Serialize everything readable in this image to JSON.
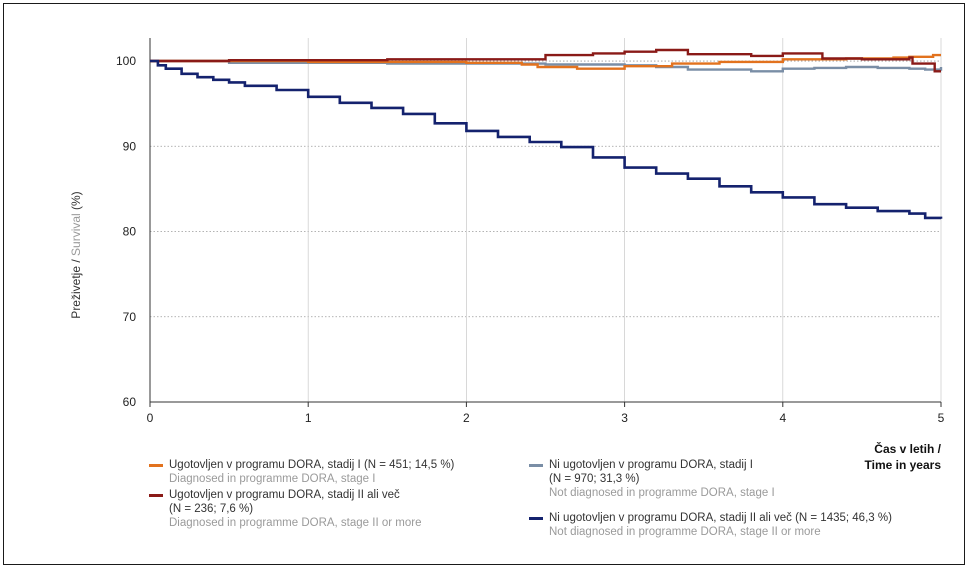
{
  "chart_data": {
    "type": "line",
    "ylabel_sl": "Preživetje",
    "ylabel_sep": " / ",
    "ylabel_en": "Survival",
    "ylabel_unit": " (%)",
    "xlabel_line1": "Čas v letih /",
    "xlabel_line2": "Time in years",
    "xlim": [
      0,
      5
    ],
    "ylim": [
      60,
      102
    ],
    "xticks": [
      "0",
      "1",
      "2",
      "3",
      "4",
      "5"
    ],
    "yticks": [
      "60",
      "70",
      "80",
      "90",
      "100"
    ],
    "grid": true,
    "legend_position": "bottom",
    "series": [
      {
        "name": "Ugotovljen v programu DORA, stadij I (N = 451; 14,5 %)",
        "subtitle": "Diagnosed in programme DORA, stage I",
        "color": "#e2721e",
        "points": [
          [
            0,
            100
          ],
          [
            1.0,
            99.9
          ],
          [
            2.0,
            99.8
          ],
          [
            2.35,
            99.6
          ],
          [
            2.45,
            99.3
          ],
          [
            2.6,
            99.3
          ],
          [
            2.7,
            99.1
          ],
          [
            3.0,
            99.4
          ],
          [
            3.3,
            99.7
          ],
          [
            3.6,
            99.9
          ],
          [
            4.0,
            100.2
          ],
          [
            4.4,
            100.3
          ],
          [
            4.7,
            100.4
          ],
          [
            4.8,
            100.5
          ],
          [
            4.95,
            100.7
          ],
          [
            5.0,
            100.7
          ]
        ]
      },
      {
        "name": "Ugotovljen v programu DORA, stadij II ali več",
        "name_line2": "(N = 236; 7,6 %)",
        "subtitle": "Diagnosed in programme DORA, stage II or more",
        "color": "#8a1a17",
        "points": [
          [
            0,
            100
          ],
          [
            0.5,
            100.1
          ],
          [
            1.0,
            100.1
          ],
          [
            1.5,
            100.2
          ],
          [
            2.0,
            100.2
          ],
          [
            2.45,
            100.2
          ],
          [
            2.5,
            100.7
          ],
          [
            2.8,
            100.9
          ],
          [
            3.0,
            101.1
          ],
          [
            3.2,
            101.3
          ],
          [
            3.35,
            101.3
          ],
          [
            3.4,
            100.8
          ],
          [
            3.6,
            100.8
          ],
          [
            3.8,
            100.6
          ],
          [
            4.0,
            100.9
          ],
          [
            4.2,
            100.9
          ],
          [
            4.25,
            100.3
          ],
          [
            4.5,
            100.2
          ],
          [
            4.8,
            100.4
          ],
          [
            4.82,
            99.7
          ],
          [
            4.95,
            99.7
          ],
          [
            4.96,
            98.8
          ],
          [
            5.0,
            98.8
          ]
        ]
      },
      {
        "name": "Ni ugotovljen v programu DORA, stadij I",
        "name_line2": "(N = 970; 31,3 %)",
        "subtitle": "Not diagnosed in programme DORA, stage I",
        "color": "#7a8ea6",
        "points": [
          [
            0,
            100
          ],
          [
            0.5,
            99.8
          ],
          [
            1.0,
            99.8
          ],
          [
            1.5,
            99.7
          ],
          [
            2.0,
            99.7
          ],
          [
            2.5,
            99.6
          ],
          [
            3.0,
            99.5
          ],
          [
            3.2,
            99.3
          ],
          [
            3.4,
            99.0
          ],
          [
            3.6,
            99.0
          ],
          [
            3.8,
            98.8
          ],
          [
            4.0,
            99.1
          ],
          [
            4.2,
            99.2
          ],
          [
            4.4,
            99.3
          ],
          [
            4.6,
            99.2
          ],
          [
            4.8,
            99.1
          ],
          [
            4.9,
            99.0
          ],
          [
            5.0,
            99.3
          ]
        ]
      },
      {
        "name": "Ni ugotovljen v programu DORA, stadij II ali več (N = 1435; 46,3 %)",
        "subtitle": "Not diagnosed in programme DORA, stage II or more",
        "color": "#14226e",
        "points": [
          [
            0,
            100
          ],
          [
            0.05,
            99.5
          ],
          [
            0.1,
            99.1
          ],
          [
            0.2,
            98.5
          ],
          [
            0.3,
            98.1
          ],
          [
            0.4,
            97.8
          ],
          [
            0.5,
            97.5
          ],
          [
            0.6,
            97.1
          ],
          [
            0.8,
            96.6
          ],
          [
            1.0,
            95.8
          ],
          [
            1.2,
            95.1
          ],
          [
            1.4,
            94.5
          ],
          [
            1.6,
            93.8
          ],
          [
            1.8,
            92.7
          ],
          [
            2.0,
            91.8
          ],
          [
            2.2,
            91.1
          ],
          [
            2.4,
            90.5
          ],
          [
            2.6,
            89.9
          ],
          [
            2.8,
            88.7
          ],
          [
            3.0,
            87.5
          ],
          [
            3.2,
            86.8
          ],
          [
            3.4,
            86.2
          ],
          [
            3.6,
            85.3
          ],
          [
            3.8,
            84.6
          ],
          [
            4.0,
            84.0
          ],
          [
            4.2,
            83.2
          ],
          [
            4.4,
            82.8
          ],
          [
            4.6,
            82.4
          ],
          [
            4.8,
            82.1
          ],
          [
            4.9,
            81.6
          ],
          [
            5.0,
            81.5
          ]
        ]
      }
    ]
  }
}
